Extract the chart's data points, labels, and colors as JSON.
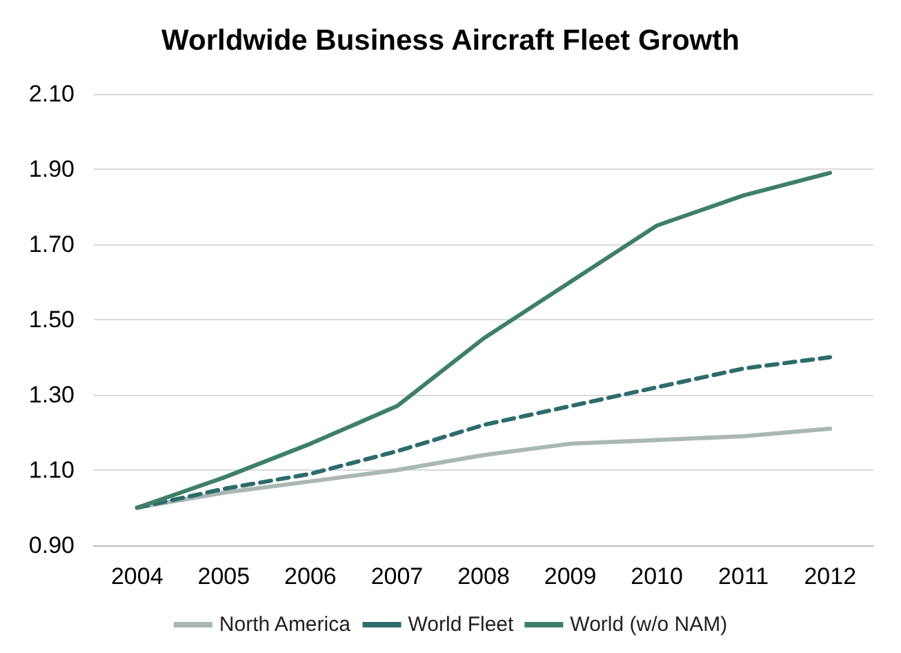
{
  "chart_data": {
    "type": "line",
    "title": "Worldwide Business Aircraft Fleet Growth",
    "categories": [
      "2004",
      "2005",
      "2006",
      "2007",
      "2008",
      "2009",
      "2010",
      "2011",
      "2012"
    ],
    "series": [
      {
        "name": "North America",
        "color": "#a9b8b3",
        "line_style": "solid",
        "values": [
          1.0,
          1.04,
          1.07,
          1.1,
          1.14,
          1.17,
          1.18,
          1.19,
          1.21
        ]
      },
      {
        "name": "World Fleet",
        "color": "#2e6b6b",
        "line_style": "dashed",
        "values": [
          1.0,
          1.05,
          1.09,
          1.15,
          1.22,
          1.27,
          1.32,
          1.37,
          1.4
        ]
      },
      {
        "name": "World (w/o NAM)",
        "color": "#3f7f68",
        "line_style": "solid",
        "values": [
          1.0,
          1.08,
          1.17,
          1.27,
          1.45,
          1.6,
          1.75,
          1.83,
          1.89
        ]
      }
    ],
    "ylim": [
      0.9,
      2.1
    ],
    "yticks": [
      {
        "value": 0.9,
        "label": "0.90"
      },
      {
        "value": 1.1,
        "label": "1.10"
      },
      {
        "value": 1.3,
        "label": "1.30"
      },
      {
        "value": 1.5,
        "label": "1.50"
      },
      {
        "value": 1.7,
        "label": "1.70"
      },
      {
        "value": 1.9,
        "label": "1.90"
      },
      {
        "value": 2.1,
        "label": "2.10"
      }
    ],
    "grid": "y",
    "legend": "bottom",
    "marker": "none"
  }
}
